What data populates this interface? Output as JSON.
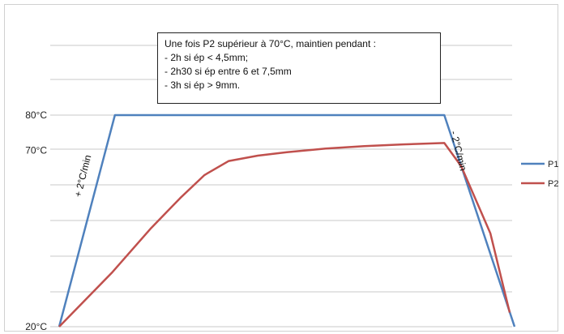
{
  "chart_data": {
    "type": "line",
    "title": "",
    "xlabel": "",
    "ylabel": "",
    "ylim": [
      20,
      90
    ],
    "y_ticks": [
      "80°C",
      "70°C",
      "20°C"
    ],
    "y_tick_values": [
      80,
      70,
      20
    ],
    "grid": true,
    "legend_position": "right",
    "series": [
      {
        "name": "P1",
        "color": "#4f81bd",
        "x": [
          0,
          11.5,
          79.5,
          94
        ],
        "y": [
          20,
          80,
          80,
          20
        ]
      },
      {
        "name": "P2",
        "color": "#c0504d",
        "x": [
          0,
          11,
          19,
          25,
          30,
          35,
          41,
          47,
          55,
          63,
          71,
          79.5,
          83,
          89,
          93
        ],
        "y": [
          20,
          35.5,
          48,
          56.5,
          63,
          67,
          68.5,
          69.5,
          70.5,
          71.2,
          71.7,
          72.1,
          65.5,
          46.5,
          24
        ]
      }
    ],
    "annotations": [
      "+ 2°C/min",
      "- 2°C/min"
    ]
  },
  "note_box": {
    "lines": [
      "Une fois P2 supérieur à 70°C, maintien pendant :",
      "- 2h si ép < 4,5mm;",
      "- 2h30 si ép entre 6 et 7,5mm",
      "- 3h si ép > 9mm."
    ]
  }
}
